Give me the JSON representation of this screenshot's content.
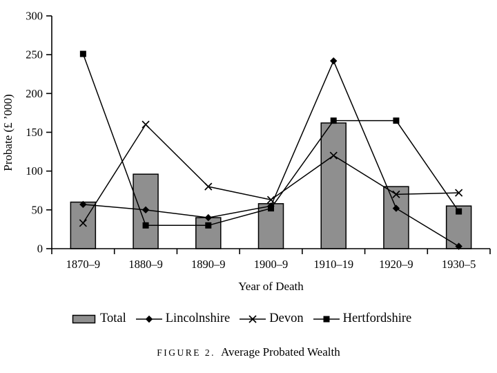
{
  "figure": {
    "caption_label": "FIGURE 2.",
    "caption_title": "Average Probated Wealth"
  },
  "chart_data": {
    "type": "bar+line",
    "title": "",
    "xlabel": "Year of Death",
    "ylabel": "Probate (£ ’000)",
    "ylim": [
      0,
      300
    ],
    "yticks": [
      0,
      50,
      100,
      150,
      200,
      250,
      300
    ],
    "grid": false,
    "legend_position": "bottom",
    "categories": [
      "1870–9",
      "1880–9",
      "1890–9",
      "1900–9",
      "1910–19",
      "1920–9",
      "1930–5"
    ],
    "bar_series": {
      "name": "Total",
      "values": [
        60,
        96,
        40,
        58,
        162,
        80,
        55
      ],
      "fill": "#8f8f8f",
      "stroke": "#000000"
    },
    "line_series": [
      {
        "name": "Lincolnshire",
        "marker": "diamond",
        "color": "#000000",
        "values": [
          57,
          50,
          40,
          55,
          242,
          52,
          3
        ]
      },
      {
        "name": "Devon",
        "marker": "x",
        "color": "#000000",
        "values": [
          33,
          160,
          80,
          63,
          120,
          70,
          72
        ]
      },
      {
        "name": "Hertfordshire",
        "marker": "square",
        "color": "#000000",
        "values": [
          251,
          30,
          30,
          52,
          165,
          165,
          48
        ]
      }
    ]
  },
  "legend": {
    "items": [
      {
        "label": "Total",
        "swatch": "bar"
      },
      {
        "label": "Lincolnshire",
        "swatch": "diamond"
      },
      {
        "label": "Devon",
        "swatch": "x"
      },
      {
        "label": "Hertfordshire",
        "swatch": "square"
      }
    ]
  }
}
